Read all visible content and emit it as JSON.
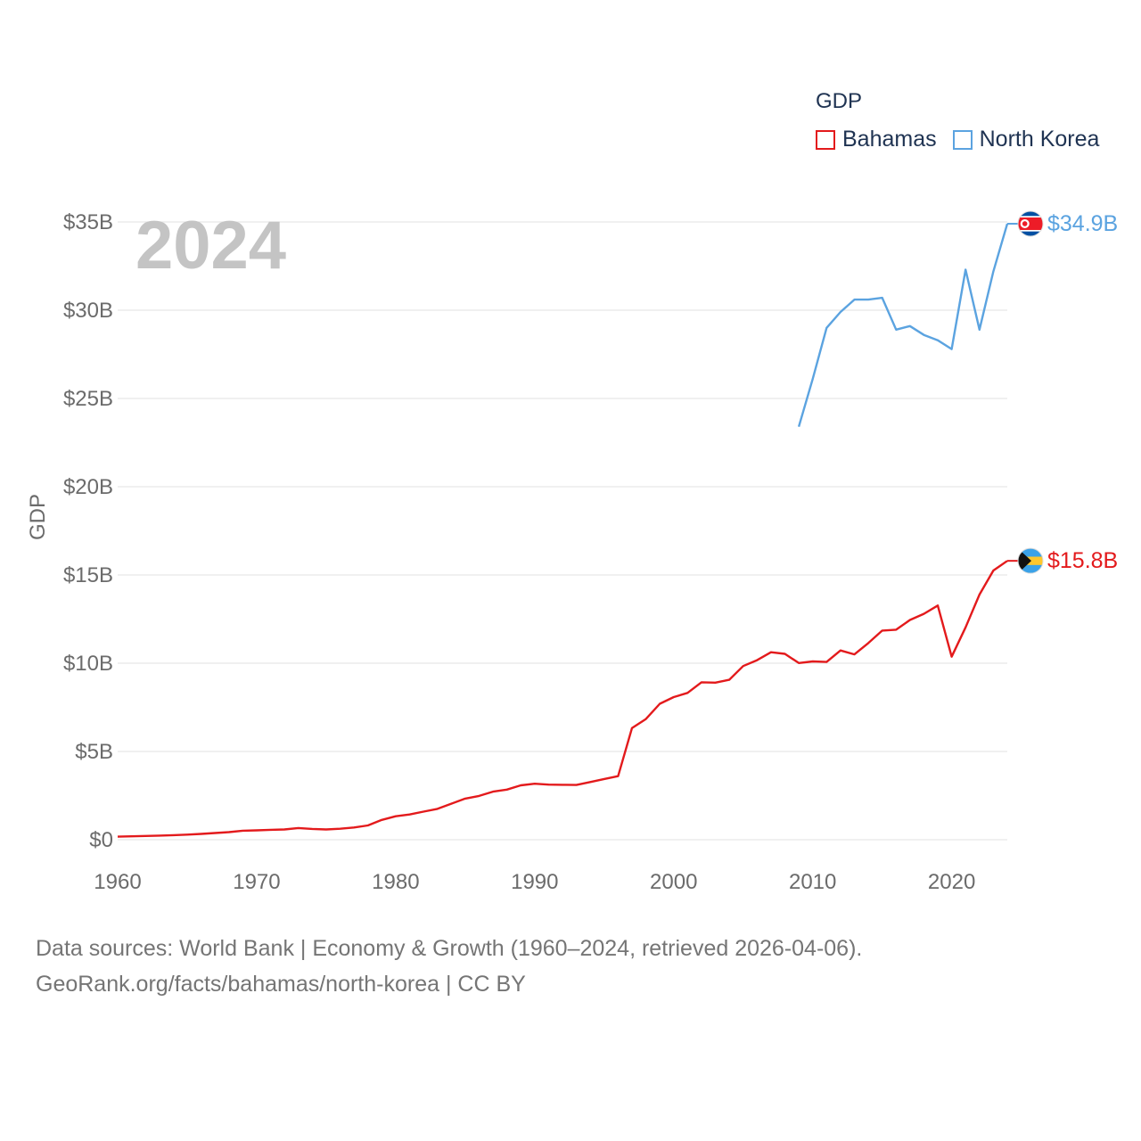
{
  "chart_data": {
    "type": "line",
    "title": "GDP",
    "year_label": "2024",
    "ylabel": "GDP",
    "xlabel": "",
    "xlim": [
      1960,
      2024
    ],
    "ylim": [
      0,
      35
    ],
    "x_ticks": [
      1960,
      1970,
      1980,
      1990,
      2000,
      2010,
      2020
    ],
    "x_tick_labels": [
      "1960",
      "1970",
      "1980",
      "1990",
      "2000",
      "2010",
      "2020"
    ],
    "y_ticks": [
      0,
      5,
      10,
      15,
      20,
      25,
      30,
      35
    ],
    "y_tick_labels": [
      "$0",
      "$5B",
      "$10B",
      "$15B",
      "$20B",
      "$25B",
      "$30B",
      "$35B"
    ],
    "legend": {
      "title": "GDP",
      "position": "top-right"
    },
    "series": [
      {
        "name": "Bahamas",
        "color": "#e31a1c",
        "end_label": "$15.8B",
        "flag": "bahamas-flag-icon",
        "x": [
          1960,
          1961,
          1962,
          1963,
          1964,
          1965,
          1966,
          1967,
          1968,
          1969,
          1970,
          1971,
          1972,
          1973,
          1974,
          1975,
          1976,
          1977,
          1978,
          1979,
          1980,
          1981,
          1982,
          1983,
          1984,
          1985,
          1986,
          1987,
          1988,
          1989,
          1990,
          1991,
          1992,
          1993,
          1994,
          1995,
          1996,
          1997,
          1998,
          1999,
          2000,
          2001,
          2002,
          2003,
          2004,
          2005,
          2006,
          2007,
          2008,
          2009,
          2010,
          2011,
          2012,
          2013,
          2014,
          2015,
          2016,
          2017,
          2018,
          2019,
          2020,
          2021,
          2022,
          2023,
          2024
        ],
        "values": [
          0.17,
          0.19,
          0.21,
          0.23,
          0.26,
          0.29,
          0.33,
          0.38,
          0.43,
          0.51,
          0.53,
          0.56,
          0.58,
          0.66,
          0.61,
          0.58,
          0.62,
          0.69,
          0.81,
          1.12,
          1.33,
          1.43,
          1.59,
          1.75,
          2.04,
          2.33,
          2.48,
          2.72,
          2.84,
          3.08,
          3.17,
          3.12,
          3.11,
          3.1,
          3.27,
          3.44,
          3.6,
          6.33,
          6.84,
          7.7,
          8.08,
          8.32,
          8.92,
          8.9,
          9.06,
          9.84,
          10.17,
          10.62,
          10.53,
          10.01,
          10.1,
          10.07,
          10.72,
          10.5,
          11.14,
          11.85,
          11.9,
          12.45,
          12.8,
          13.27,
          10.37,
          12.03,
          13.89,
          15.25,
          15.8
        ]
      },
      {
        "name": "North Korea",
        "color": "#5ba3e0",
        "end_label": "$34.9B",
        "flag": "north-korea-flag-icon",
        "x": [
          2009,
          2010,
          2011,
          2012,
          2013,
          2014,
          2015,
          2016,
          2017,
          2018,
          2019,
          2020,
          2021,
          2022,
          2023,
          2024
        ],
        "values": [
          23.4,
          26.1,
          29.0,
          29.9,
          30.6,
          30.6,
          30.7,
          28.9,
          29.1,
          28.6,
          28.3,
          27.8,
          32.3,
          28.9,
          32.2,
          34.9
        ]
      }
    ]
  },
  "source": {
    "line1": "Data sources: World Bank | Economy & Growth (1960–2024, retrieved 2026-04-06).",
    "line2": "GeoRank.org/facts/bahamas/north-korea | CC BY"
  }
}
